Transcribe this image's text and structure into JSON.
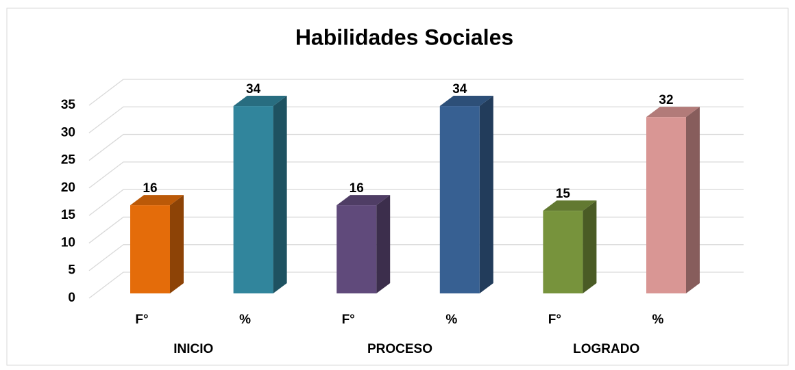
{
  "chart_data": {
    "type": "bar3d",
    "title": "Habilidades Sociales",
    "categories": [
      "F°",
      "%",
      "F°",
      "%",
      "F°",
      "%"
    ],
    "groups": [
      "INICIO",
      "PROCESO",
      "LOGRADO"
    ],
    "values": [
      16,
      34,
      16,
      34,
      15,
      32
    ],
    "colors": [
      "#e46c0a",
      "#31859c",
      "#604a7b",
      "#376092",
      "#77933c",
      "#d99694"
    ],
    "ylim": [
      0,
      35
    ],
    "yticks": [
      0,
      5,
      10,
      15,
      20,
      25,
      30,
      35
    ],
    "grid": true
  }
}
